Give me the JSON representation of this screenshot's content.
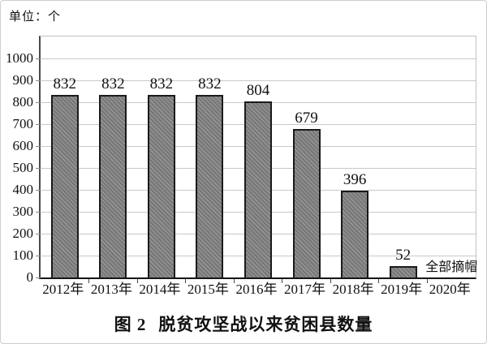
{
  "figure": {
    "unit_label": "单位：个",
    "caption_prefix": "图 2",
    "caption_text": "脱贫攻坚战以来贫困县数量"
  },
  "chart_data": {
    "type": "bar",
    "title": "图2 脱贫攻坚战以来贫困县数量",
    "unit": "个",
    "categories": [
      "2012年",
      "2013年",
      "2014年",
      "2015年",
      "2016年",
      "2017年",
      "2018年",
      "2019年",
      "2020年"
    ],
    "values": [
      832,
      832,
      832,
      832,
      804,
      679,
      396,
      52,
      null
    ],
    "value_labels": [
      "832",
      "832",
      "832",
      "832",
      "804",
      "679",
      "396",
      "52",
      ""
    ],
    "annotations": [
      {
        "category_index": 8,
        "text": "全部摘帽"
      }
    ],
    "ylim": [
      0,
      1100
    ],
    "yticks": [
      0,
      100,
      200,
      300,
      400,
      500,
      600,
      700,
      800,
      900,
      1000
    ],
    "grid": "horizontal",
    "legend": "none",
    "bar_pattern": "diagonal-hatch",
    "colors": {
      "bar_fill": "#868686",
      "bar_border": "#1a1a1a",
      "gridline": "#c9c9c9",
      "axis": "#161616",
      "text": "#111111"
    }
  }
}
